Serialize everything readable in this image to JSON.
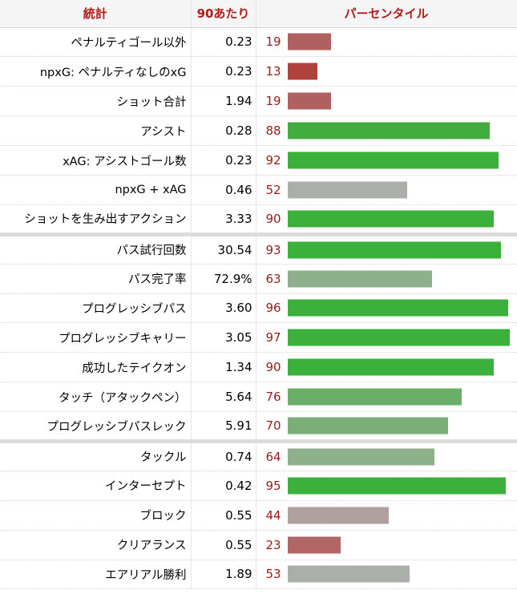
{
  "header": {
    "stat": "統計",
    "per90": "90あたり",
    "percentile": "パーセンタイル"
  },
  "chart_data": {
    "type": "bar",
    "orientation": "horizontal",
    "xlim": [
      0,
      100
    ],
    "columns": [
      "統計",
      "90あたり",
      "パーセンタイル"
    ],
    "groups": [
      {
        "rows": [
          {
            "stat": "ペナルティゴール以外",
            "per90": "0.23",
            "percentile": 19,
            "color": "#b0605e"
          },
          {
            "stat": "npxG: ペナルティなしのxG",
            "per90": "0.23",
            "percentile": 13,
            "color": "#b0423e"
          },
          {
            "stat": "ショット合計",
            "per90": "1.94",
            "percentile": 19,
            "color": "#b0605e"
          },
          {
            "stat": "アシスト",
            "per90": "0.28",
            "percentile": 88,
            "color": "#43ac3f"
          },
          {
            "stat": "xAG: アシストゴール数",
            "per90": "0.23",
            "percentile": 92,
            "color": "#3bb13c"
          },
          {
            "stat": "npxG + xAG",
            "per90": "0.46",
            "percentile": 52,
            "color": "#abafa9"
          },
          {
            "stat": "ショットを生み出すアクション",
            "per90": "3.33",
            "percentile": 90,
            "color": "#3bb13c"
          }
        ]
      },
      {
        "rows": [
          {
            "stat": "パス試行回数",
            "per90": "30.54",
            "percentile": 93,
            "color": "#3bb13c"
          },
          {
            "stat": "パス完了率",
            "per90": "72.9%",
            "percentile": 63,
            "color": "#8eb08a"
          },
          {
            "stat": "プログレッシブパス",
            "per90": "3.60",
            "percentile": 96,
            "color": "#3bb13c"
          },
          {
            "stat": "プログレッシブキャリー",
            "per90": "3.05",
            "percentile": 97,
            "color": "#3bb13c"
          },
          {
            "stat": "成功したテイクオン",
            "per90": "1.34",
            "percentile": 90,
            "color": "#3bb13c"
          },
          {
            "stat": "タッチ（アタックペン）",
            "per90": "5.64",
            "percentile": 76,
            "color": "#6aae67"
          },
          {
            "stat": "プログレッシブパスレック",
            "per90": "5.91",
            "percentile": 70,
            "color": "#7aae76"
          }
        ]
      },
      {
        "rows": [
          {
            "stat": "タックル",
            "per90": "0.74",
            "percentile": 64,
            "color": "#8eb08a"
          },
          {
            "stat": "インターセプト",
            "per90": "0.42",
            "percentile": 95,
            "color": "#3bb13c"
          },
          {
            "stat": "ブロック",
            "per90": "0.55",
            "percentile": 44,
            "color": "#b0a0a0"
          },
          {
            "stat": "クリアランス",
            "per90": "0.55",
            "percentile": 23,
            "color": "#b06664"
          },
          {
            "stat": "エアリアル勝利",
            "per90": "1.89",
            "percentile": 53,
            "color": "#abafa9"
          }
        ]
      }
    ]
  }
}
